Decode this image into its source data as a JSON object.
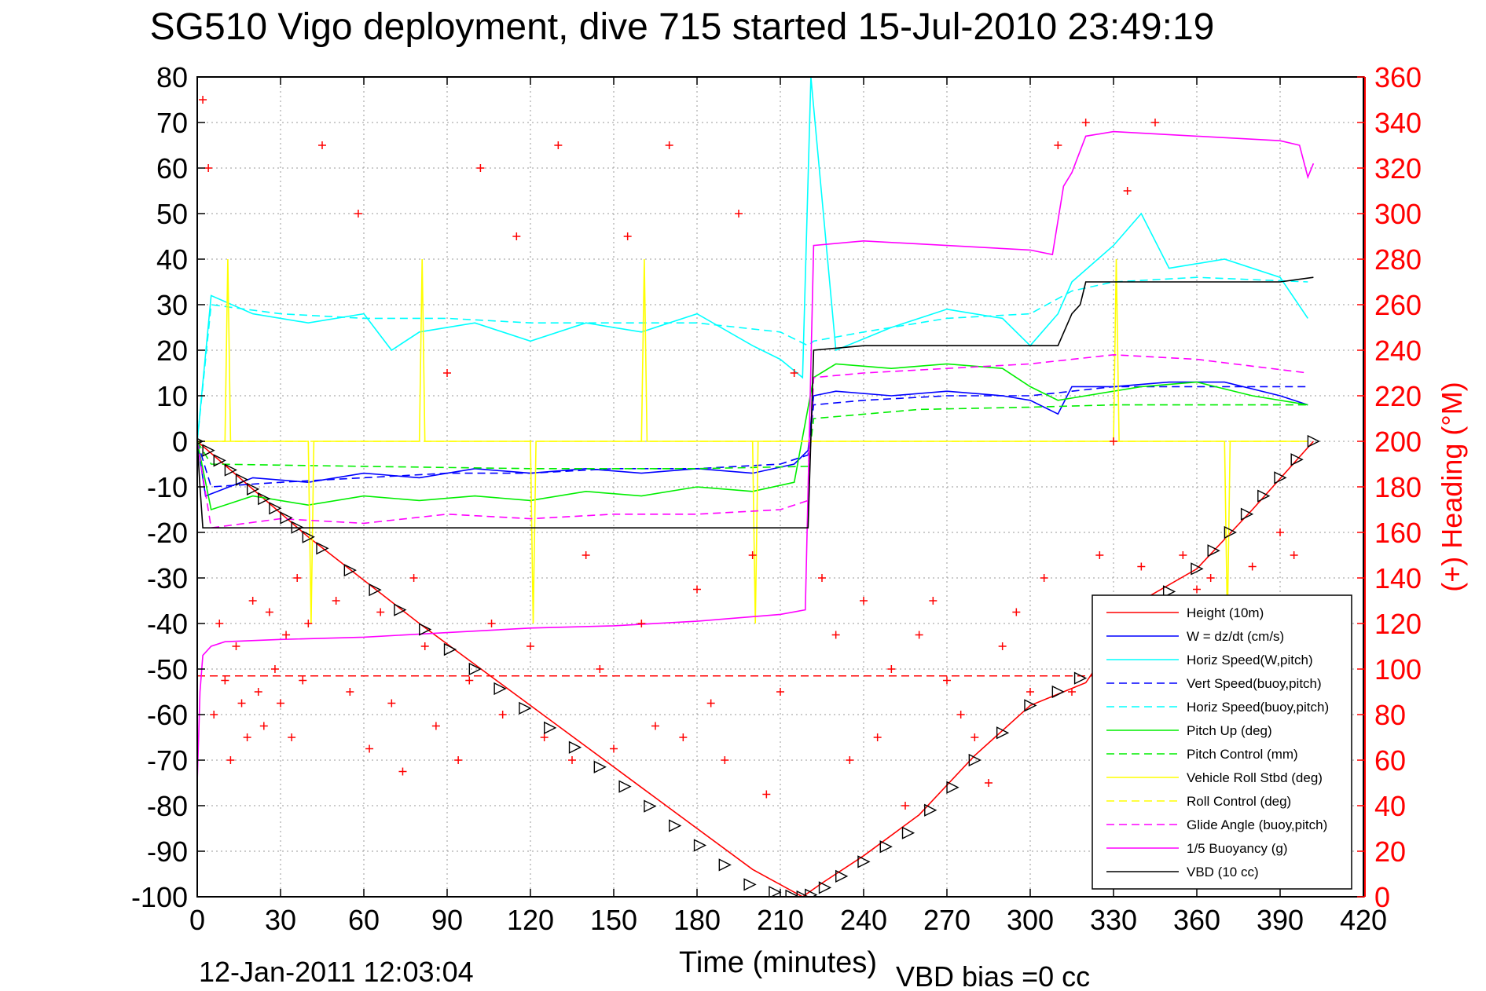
{
  "chart_data": {
    "type": "line",
    "title": "SG510 Vigo deployment, dive 715 started 15-Jul-2010 23:49:19",
    "xlabel": "Time (minutes)",
    "ylabel": "",
    "ylabel_right": "(+) Heading (°M)",
    "xlim": [
      0,
      420
    ],
    "ylim": [
      -100,
      80
    ],
    "ylim_right": [
      0,
      360
    ],
    "x_ticks": [
      0,
      30,
      60,
      90,
      120,
      150,
      180,
      210,
      240,
      270,
      300,
      330,
      360,
      390,
      420
    ],
    "y_ticks": [
      80,
      70,
      60,
      50,
      40,
      30,
      20,
      10,
      0,
      -10,
      -20,
      -30,
      -40,
      -50,
      -60,
      -70,
      -80,
      -90,
      -100
    ],
    "y_ticks_right": [
      360,
      340,
      320,
      300,
      280,
      260,
      240,
      220,
      200,
      180,
      160,
      140,
      120,
      100,
      80,
      60,
      40,
      20,
      0
    ],
    "grid": true,
    "legend_position": "bottom-right",
    "footer_date": "12-Jan-2011 12:03:04",
    "footer_note": "VBD bias =0 cc",
    "colors": {
      "red": "#ff0000",
      "blue": "#0000ff",
      "cyan": "#00ffff",
      "green": "#00ee00",
      "yellow": "#ffff00",
      "magenta": "#ff00ff",
      "black": "#000000"
    },
    "series": [
      {
        "name": "Height (10m)",
        "color": "#ff0000",
        "style": "solid",
        "x": [
          0,
          40,
          80,
          120,
          160,
          200,
          218,
          225,
          240,
          260,
          280,
          300,
          320,
          340,
          360,
          380,
          402
        ],
        "y": [
          0,
          -21,
          -40,
          -58,
          -76,
          -94,
          -100,
          -97,
          -91,
          -82,
          -69,
          -58,
          -53,
          -35,
          -28,
          -15,
          0
        ]
      },
      {
        "name": "W = dz/dt (cm/s)",
        "color": "#0000ff",
        "style": "solid",
        "x": [
          0,
          3,
          20,
          40,
          60,
          80,
          100,
          120,
          140,
          160,
          180,
          200,
          215,
          220,
          222,
          230,
          250,
          270,
          290,
          300,
          310,
          315,
          330,
          350,
          370,
          390,
          400
        ],
        "y": [
          0,
          -12,
          -8,
          -9,
          -7,
          -8,
          -6,
          -7,
          -6,
          -7,
          -6,
          -7,
          -5,
          -2,
          10,
          11,
          10,
          11,
          10,
          9,
          6,
          12,
          12,
          13,
          13,
          10,
          8
        ]
      },
      {
        "name": "Horiz Speed(W,pitch)",
        "color": "#00ffff",
        "style": "solid",
        "x": [
          0,
          5,
          20,
          40,
          60,
          70,
          80,
          100,
          120,
          140,
          160,
          180,
          200,
          210,
          218,
          221,
          230,
          250,
          270,
          290,
          300,
          310,
          315,
          330,
          340,
          350,
          370,
          390,
          400
        ],
        "y": [
          0,
          32,
          28,
          26,
          28,
          20,
          24,
          26,
          22,
          26,
          24,
          28,
          21,
          18,
          14,
          80,
          20,
          25,
          29,
          27,
          21,
          28,
          35,
          43,
          50,
          38,
          40,
          36,
          27
        ]
      },
      {
        "name": "Vert Speed(buoy,pitch)",
        "color": "#0000ff",
        "style": "dashed",
        "x": [
          0,
          5,
          30,
          60,
          90,
          120,
          150,
          180,
          210,
          220,
          222,
          240,
          270,
          300,
          315,
          330,
          360,
          400
        ],
        "y": [
          0,
          -10,
          -9,
          -8,
          -7,
          -7,
          -6,
          -6,
          -5,
          -3,
          8,
          9,
          10,
          10,
          11,
          12,
          12,
          12
        ]
      },
      {
        "name": "Horiz Speed(buoy,pitch)",
        "color": "#00ffff",
        "style": "dashed",
        "x": [
          0,
          5,
          30,
          60,
          90,
          120,
          150,
          180,
          210,
          220,
          222,
          240,
          270,
          300,
          315,
          330,
          360,
          400
        ],
        "y": [
          0,
          30,
          28,
          27,
          27,
          26,
          26,
          26,
          24,
          21,
          22,
          24,
          27,
          28,
          33,
          35,
          36,
          35
        ]
      },
      {
        "name": "Pitch Up (deg)",
        "color": "#00ee00",
        "style": "solid",
        "x": [
          0,
          5,
          20,
          40,
          60,
          80,
          100,
          120,
          140,
          160,
          180,
          200,
          215,
          222,
          230,
          250,
          270,
          290,
          300,
          310,
          320,
          340,
          360,
          380,
          400
        ],
        "y": [
          0,
          -15,
          -12,
          -14,
          -12,
          -13,
          -12,
          -13,
          -11,
          -12,
          -10,
          -11,
          -9,
          14,
          17,
          16,
          17,
          16,
          12,
          9,
          10,
          12,
          13,
          10,
          8
        ]
      },
      {
        "name": "Pitch Control (mm)",
        "color": "#00ee00",
        "style": "dashed",
        "x": [
          0,
          5,
          60,
          120,
          180,
          220,
          222,
          260,
          300,
          330,
          360,
          400
        ],
        "y": [
          0,
          -5,
          -5.5,
          -6,
          -6,
          -5.5,
          5,
          7,
          7.5,
          8,
          8,
          8
        ]
      },
      {
        "name": "Vehicle Roll Stbd (deg)",
        "color": "#ffff00",
        "style": "solid",
        "x": [
          0,
          10,
          11,
          12,
          40,
          41,
          42,
          80,
          81,
          82,
          120,
          121,
          122,
          160,
          161,
          162,
          200,
          201,
          202,
          222,
          240,
          280,
          300,
          330,
          331,
          332,
          370,
          371,
          372,
          400
        ],
        "y": [
          0,
          0,
          40,
          0,
          0,
          -40,
          0,
          0,
          40,
          0,
          0,
          -40,
          0,
          0,
          40,
          0,
          0,
          -40,
          0,
          0,
          0,
          0,
          0,
          0,
          40,
          0,
          0,
          -40,
          0,
          0
        ]
      },
      {
        "name": "Roll Control (deg)",
        "color": "#ffff00",
        "style": "dashed",
        "x": [
          0,
          60,
          120,
          180,
          220,
          222,
          300,
          330,
          400
        ],
        "y": [
          0,
          0,
          0,
          0,
          0,
          0,
          0,
          0,
          0
        ]
      },
      {
        "name": "Glide Angle (buoy,pitch)",
        "color": "#ff00ff",
        "style": "dashed",
        "x": [
          0,
          5,
          30,
          60,
          90,
          120,
          150,
          180,
          210,
          220,
          222,
          240,
          270,
          300,
          315,
          330,
          360,
          400
        ],
        "y": [
          0,
          -19,
          -17,
          -18,
          -16,
          -17,
          -16,
          -16,
          -15,
          -13,
          14,
          15,
          16,
          17,
          18,
          19,
          18,
          15
        ]
      },
      {
        "name": "1/5 Buoyancy (g)",
        "color": "#ff00ff",
        "style": "solid",
        "x": [
          0,
          1,
          2,
          5,
          10,
          30,
          60,
          90,
          120,
          150,
          180,
          210,
          219,
          222,
          240,
          270,
          300,
          308,
          312,
          315,
          320,
          330,
          360,
          390,
          397,
          400,
          402
        ],
        "y": [
          -75,
          -55,
          -47,
          -45,
          -44,
          -43.5,
          -43,
          -42,
          -41,
          -40.5,
          -39.5,
          -38,
          -37,
          43,
          44,
          43,
          42,
          41,
          56,
          59,
          67,
          68,
          67,
          66,
          65,
          58,
          61
        ]
      },
      {
        "name": "VBD (10 cc)",
        "color": "#000000",
        "style": "solid",
        "x": [
          0,
          1,
          2,
          218,
          220,
          222,
          240,
          270,
          300,
          310,
          315,
          318,
          320,
          330,
          360,
          390,
          402
        ],
        "y": [
          0,
          -10,
          -19,
          -19,
          -19,
          20,
          21,
          21,
          21,
          21,
          28,
          30,
          35,
          35,
          35,
          35,
          36
        ]
      }
    ],
    "reference_line": {
      "y": -51.5,
      "color": "#ff0000",
      "style": "dashed",
      "x": [
        0,
        402
      ]
    },
    "heading_points": {
      "color": "#ff0000",
      "marker": "+",
      "axis": "right",
      "x": [
        2,
        4,
        6,
        8,
        10,
        12,
        14,
        16,
        18,
        20,
        22,
        24,
        26,
        28,
        30,
        32,
        34,
        36,
        38,
        40,
        45,
        50,
        55,
        58,
        62,
        66,
        70,
        74,
        78,
        82,
        86,
        90,
        94,
        98,
        102,
        106,
        110,
        115,
        120,
        125,
        130,
        135,
        140,
        145,
        150,
        155,
        160,
        165,
        170,
        175,
        180,
        185,
        190,
        195,
        200,
        205,
        210,
        215,
        225,
        230,
        235,
        240,
        245,
        250,
        255,
        260,
        265,
        270,
        275,
        280,
        285,
        290,
        295,
        300,
        305,
        310,
        315,
        320,
        325,
        330,
        335,
        340,
        345,
        350,
        355,
        360,
        365,
        370,
        375,
        380,
        385,
        390,
        395
      ],
      "y": [
        350,
        320,
        80,
        120,
        95,
        60,
        110,
        85,
        70,
        130,
        90,
        75,
        125,
        100,
        85,
        115,
        70,
        140,
        95,
        120,
        330,
        130,
        90,
        300,
        65,
        125,
        85,
        55,
        140,
        110,
        75,
        230,
        60,
        95,
        320,
        120,
        80,
        290,
        110,
        70,
        330,
        60,
        150,
        100,
        65,
        290,
        120,
        75,
        330,
        70,
        135,
        85,
        60,
        300,
        150,
        45,
        90,
        230,
        140,
        115,
        60,
        130,
        70,
        100,
        40,
        115,
        130,
        95,
        80,
        70,
        50,
        110,
        125,
        90,
        140,
        330,
        90,
        340,
        150,
        200,
        310,
        145,
        340,
        75,
        150,
        135,
        140,
        125,
        130,
        145,
        90,
        160,
        150
      ]
    },
    "marker_points": {
      "color": "#000000",
      "marker": "triangle",
      "x": [
        0,
        4,
        8,
        12,
        16,
        20,
        24,
        28,
        32,
        36,
        40,
        45,
        55,
        64,
        73,
        82,
        91,
        100,
        109,
        118,
        127,
        136,
        145,
        154,
        163,
        172,
        181,
        190,
        199,
        208,
        214,
        218,
        221,
        226,
        232,
        240,
        248,
        256,
        264,
        272,
        280,
        290,
        300,
        310,
        318,
        330,
        340,
        350,
        360,
        366,
        372,
        378,
        384,
        390,
        396,
        402
      ],
      "y": [
        0,
        -2,
        -4.2,
        -6.3,
        -8.4,
        -10.5,
        -12.6,
        -14.7,
        -16.8,
        -18.9,
        -21,
        -23.5,
        -28.3,
        -32.6,
        -37,
        -41.3,
        -45.7,
        -50,
        -54.3,
        -58.6,
        -62.9,
        -67.2,
        -71.5,
        -75.8,
        -80.1,
        -84.4,
        -88.7,
        -93,
        -97.3,
        -99,
        -99.8,
        -100,
        -99.6,
        -98,
        -95.5,
        -92.3,
        -89,
        -86,
        -81,
        -76,
        -70,
        -64,
        -58,
        -55,
        -52,
        -46,
        -40,
        -33,
        -28,
        -24,
        -20,
        -16,
        -12,
        -8,
        -4,
        0
      ]
    }
  }
}
